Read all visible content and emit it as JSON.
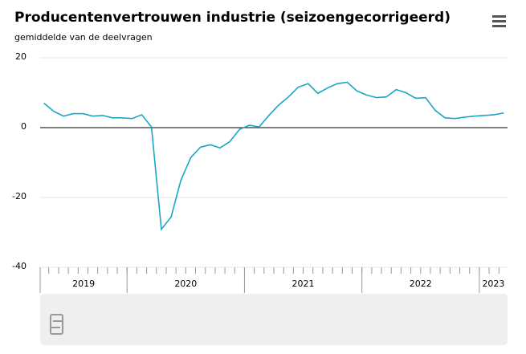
{
  "chart_data": {
    "type": "line",
    "title": "Producentenvertrouwen industrie (seizoengecorrigeerd)",
    "subtitle": "gemiddelde van de deelvragen",
    "x": [
      2019.292,
      2019.375,
      2019.458,
      2019.542,
      2019.625,
      2019.708,
      2019.792,
      2019.875,
      2019.958,
      2020.042,
      2020.125,
      2020.208,
      2020.292,
      2020.375,
      2020.458,
      2020.542,
      2020.625,
      2020.708,
      2020.792,
      2020.875,
      2020.958,
      2021.042,
      2021.125,
      2021.208,
      2021.292,
      2021.375,
      2021.458,
      2021.542,
      2021.625,
      2021.708,
      2021.792,
      2021.875,
      2021.958,
      2022.042,
      2022.125,
      2022.208,
      2022.292,
      2022.375,
      2022.458,
      2022.542,
      2022.625,
      2022.708,
      2022.792,
      2022.875,
      2022.958,
      2023.042,
      2023.125,
      2023.208
    ],
    "series": [
      {
        "color": "#1aa6c4",
        "values": [
          7.0,
          4.7,
          3.3,
          4.0,
          4.0,
          3.3,
          3.5,
          2.8,
          2.8,
          2.6,
          3.7,
          0.2,
          -29.1,
          -25.6,
          -15.1,
          -8.6,
          -5.6,
          -4.9,
          -5.8,
          -4.0,
          -0.5,
          0.7,
          0.2,
          3.5,
          6.5,
          8.8,
          11.6,
          12.6,
          9.8,
          11.4,
          12.6,
          13.0,
          10.5,
          9.3,
          8.6,
          8.8,
          10.9,
          10.0,
          8.4,
          8.6,
          4.9,
          2.8,
          2.6,
          3.0,
          3.3,
          3.5,
          3.7,
          4.2
        ]
      }
    ],
    "xlim": [
      2019.26,
      2023.24
    ],
    "xticks": [
      2020,
      2021,
      2022,
      2023
    ],
    "year_labels": [
      2019,
      2020,
      2021,
      2022,
      2023
    ],
    "ylim": [
      -40,
      20
    ],
    "yticks": [
      -40,
      -20,
      0,
      20
    ],
    "grid": true
  }
}
